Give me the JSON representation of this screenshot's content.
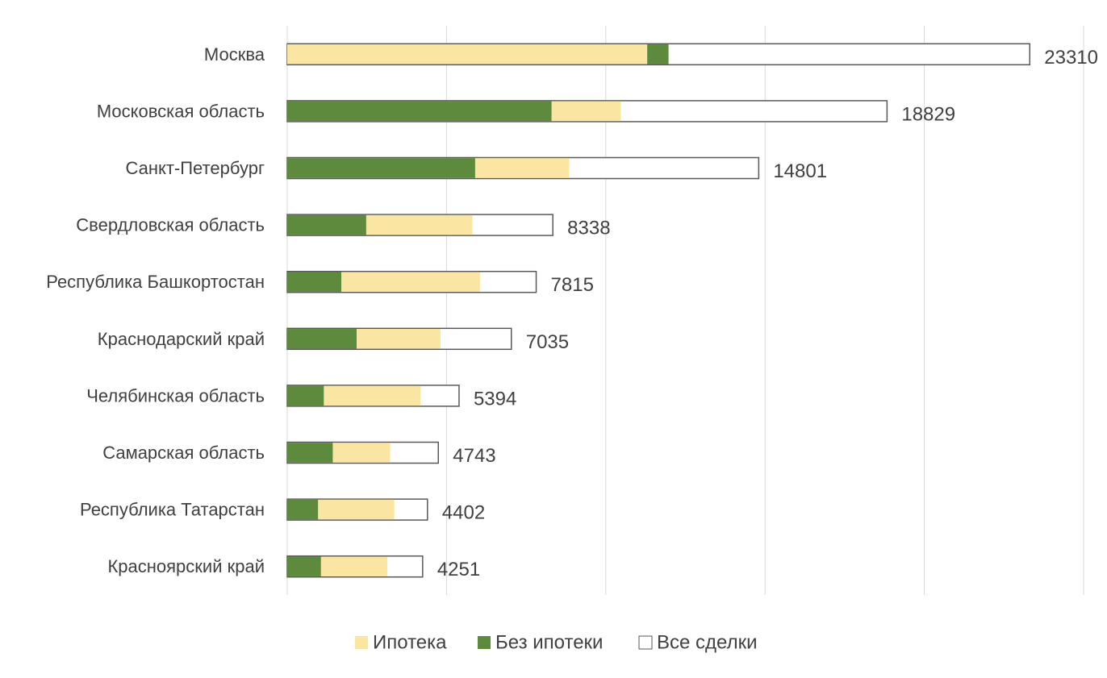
{
  "chart_data": {
    "type": "bar",
    "orientation": "horizontal",
    "categories": [
      "Москва",
      "Московская область",
      "Санкт-Петербург",
      "Свердловская область",
      "Республика Башкортостан",
      "Краснодарский край",
      "Челябинская область",
      "Самарская область",
      "Республика Татарстан",
      "Красноярский край"
    ],
    "series": [
      {
        "name": "Ипотека",
        "color": "#FBE5A2",
        "values": [
          11300,
          2170,
          2950,
          3330,
          4350,
          2630,
          3030,
          1800,
          2390,
          2080
        ]
      },
      {
        "name": "Без ипотеки",
        "color": "#5D8A3C",
        "values": [
          670,
          8300,
          5900,
          2480,
          1700,
          2180,
          1150,
          1430,
          970,
          1060
        ]
      },
      {
        "name": "Все сделки",
        "color": "#FFFFFF",
        "stroke": "#595959",
        "values": [
          23310,
          18829,
          14801,
          8338,
          7815,
          7035,
          5394,
          4743,
          4402,
          4251
        ]
      }
    ],
    "segment_order": [
      [
        "Ипотека",
        "Без ипотеки"
      ],
      [
        "Без ипотеки",
        "Ипотека"
      ],
      [
        "Без ипотеки",
        "Ипотека"
      ],
      [
        "Без ипотеки",
        "Ипотека"
      ],
      [
        "Без ипотеки",
        "Ипотека"
      ],
      [
        "Без ипотеки",
        "Ипотека"
      ],
      [
        "Без ипотеки",
        "Ипотека"
      ],
      [
        "Без ипотеки",
        "Ипотека"
      ],
      [
        "Без ипотеки",
        "Ипотека"
      ],
      [
        "Без ипотеки",
        "Ипотека"
      ]
    ],
    "data_labels": [
      "23310",
      "18829",
      "14801",
      "8338",
      "7815",
      "7035",
      "5394",
      "4743",
      "4402",
      "4251"
    ],
    "xlim": [
      0,
      25000
    ],
    "grid_step": 5000,
    "grid": true,
    "legend_position": "bottom",
    "title": "",
    "xlabel": "",
    "ylabel": ""
  }
}
